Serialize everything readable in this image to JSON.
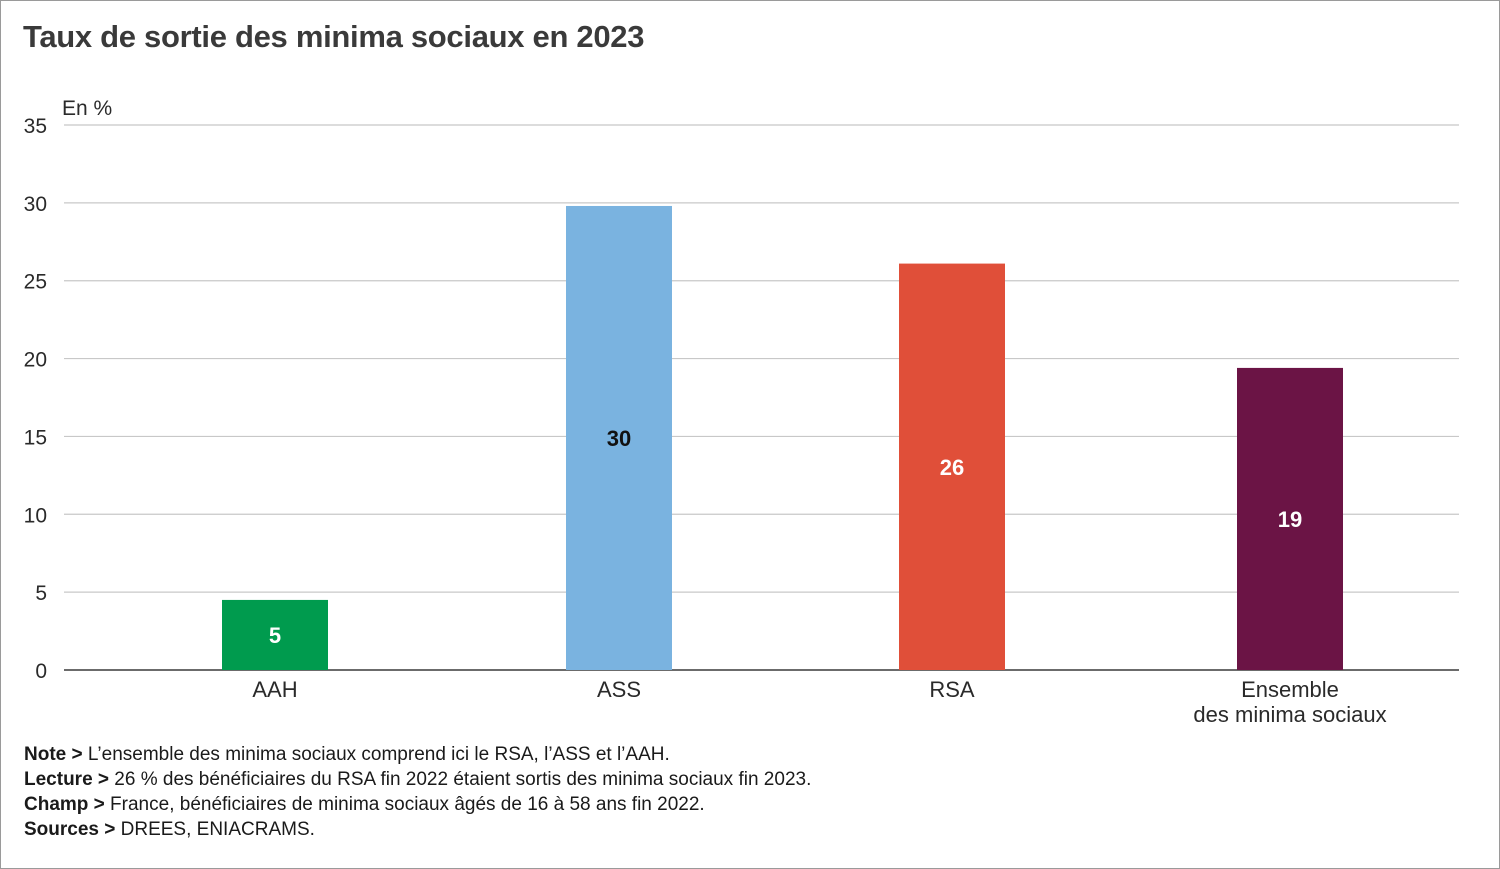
{
  "title": "Taux de sortie des minima sociaux en 2023",
  "chart_data": {
    "type": "bar",
    "unit_label": "En %",
    "categories": [
      "AAH",
      "ASS",
      "RSA",
      "Ensemble des minima sociaux"
    ],
    "category_lines": [
      [
        "AAH"
      ],
      [
        "ASS"
      ],
      [
        "RSA"
      ],
      [
        "Ensemble",
        "des minima sociaux"
      ]
    ],
    "values": [
      4.5,
      29.8,
      26.1,
      19.4
    ],
    "data_labels": [
      "5",
      "30",
      "26",
      "19"
    ],
    "colors": [
      "#009b4e",
      "#7ab3e0",
      "#e04f39",
      "#6b1445"
    ],
    "label_colors": [
      "#ffffff",
      "#111111",
      "#ffffff",
      "#ffffff"
    ],
    "ylim": [
      0,
      35
    ],
    "yticks": [
      0,
      5,
      10,
      15,
      20,
      25,
      30,
      35
    ],
    "grid": true,
    "gridline_color": "#c8c8c8"
  },
  "notes": [
    {
      "label": "Note >",
      "text": " L’ensemble des minima sociaux comprend ici le RSA, l’ASS et l’AAH."
    },
    {
      "label": "Lecture >",
      "text": " 26 % des bénéficiaires du RSA fin 2022 étaient sortis des minima sociaux fin 2023."
    },
    {
      "label": "Champ >",
      "text": " France, bénéficiaires de minima sociaux âgés de 16 à 58 ans fin 2022."
    },
    {
      "label": "Sources >",
      "text": " DREES, ENIACRAMS."
    }
  ]
}
